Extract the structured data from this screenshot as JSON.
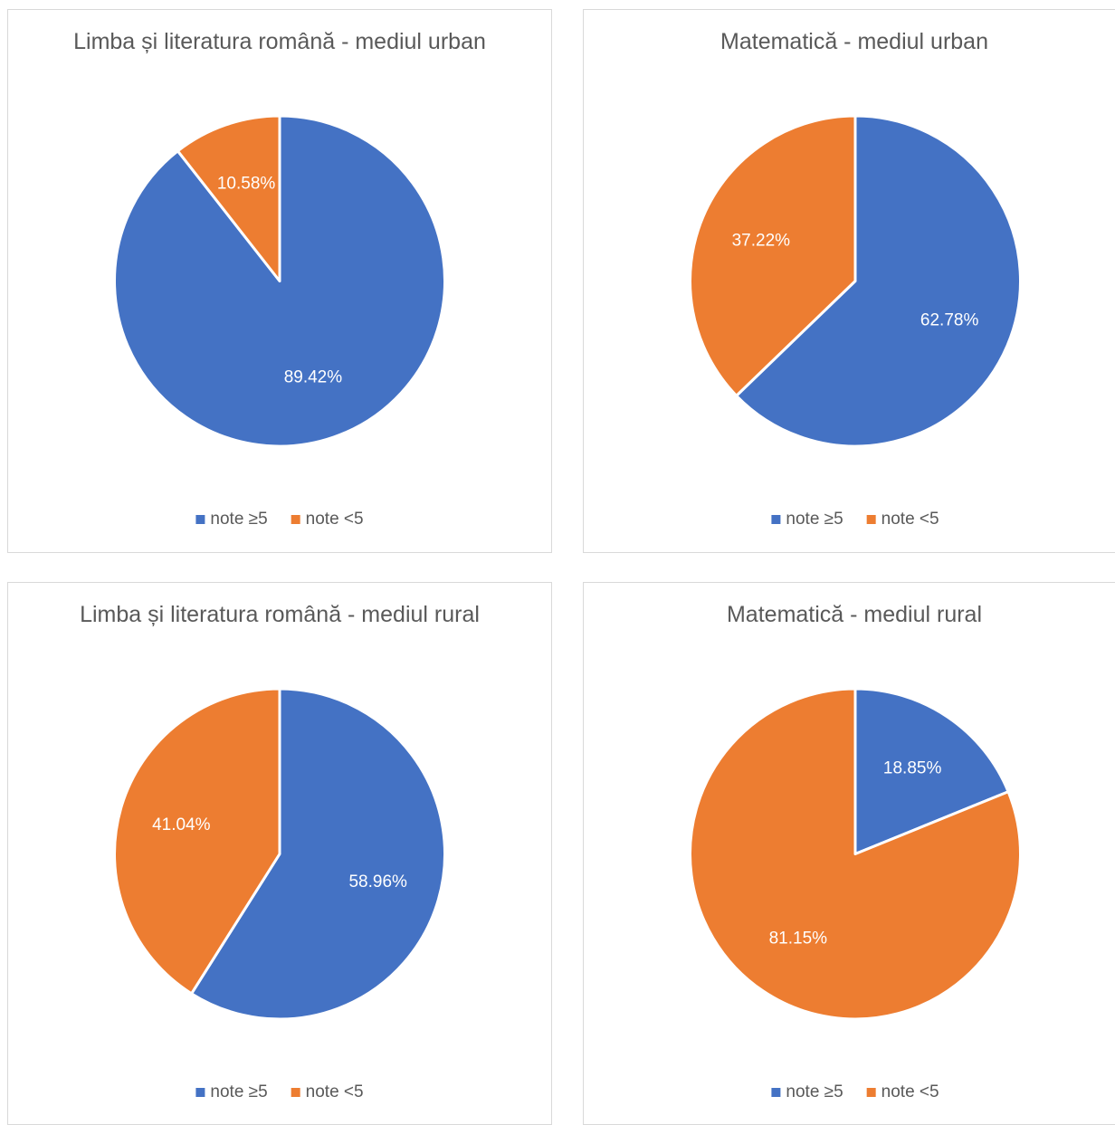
{
  "chart_data": [
    {
      "type": "pie",
      "title": "Limba și literatura română - mediul urban",
      "categories": [
        "note ≥5",
        "note <5"
      ],
      "values": [
        89.42,
        10.58
      ],
      "value_labels": [
        "89.42%",
        "10.58%"
      ],
      "colors": [
        "#4472c4",
        "#ed7d31"
      ],
      "legend": "bottom"
    },
    {
      "type": "pie",
      "title": "Matematică - mediul urban",
      "categories": [
        "note ≥5",
        "note <5"
      ],
      "values": [
        62.78,
        37.22
      ],
      "value_labels": [
        "62.78%",
        "37.22%"
      ],
      "colors": [
        "#4472c4",
        "#ed7d31"
      ],
      "legend": "bottom"
    },
    {
      "type": "pie",
      "title": "Limba și literatura română - mediul rural",
      "categories": [
        "note ≥5",
        "note <5"
      ],
      "values": [
        58.96,
        41.04
      ],
      "value_labels": [
        "58.96%",
        "41.04%"
      ],
      "colors": [
        "#4472c4",
        "#ed7d31"
      ],
      "legend": "bottom"
    },
    {
      "type": "pie",
      "title": "Matematică - mediul rural",
      "categories": [
        "note ≥5",
        "note <5"
      ],
      "values": [
        18.85,
        81.15
      ],
      "value_labels": [
        "18.85%",
        "81.15%"
      ],
      "colors": [
        "#4472c4",
        "#ed7d31"
      ],
      "legend": "bottom"
    }
  ]
}
